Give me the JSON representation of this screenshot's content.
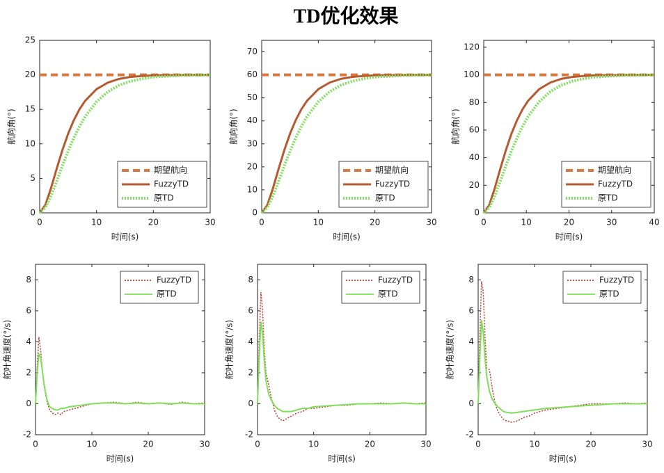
{
  "title": "TD优化效果",
  "chart_data": [
    {
      "type": "line",
      "xlabel": "时间(s)",
      "ylabel": "航向角(°)",
      "xlim": [
        0,
        30
      ],
      "ylim": [
        0,
        25
      ],
      "xticks": [
        0,
        10,
        20,
        30
      ],
      "yticks": [
        0,
        5,
        10,
        15,
        20,
        25
      ],
      "legend": "lower right",
      "x": [
        0,
        1,
        2,
        3,
        4,
        5,
        6,
        7,
        8,
        10,
        12,
        14,
        16,
        18,
        20,
        25,
        30
      ],
      "series": [
        {
          "name": "期望航向",
          "color": "#d9773f",
          "style": "dashed",
          "values": [
            20,
            20,
            20,
            20,
            20,
            20,
            20,
            20,
            20,
            20,
            20,
            20,
            20,
            20,
            20,
            20,
            20
          ]
        },
        {
          "name": "FuzzyTD",
          "color": "#b5592e",
          "style": "solid",
          "values": [
            0,
            1.15,
            3.6,
            6.42,
            9.1,
            11.46,
            13.42,
            15.0,
            16.24,
            17.92,
            18.88,
            19.42,
            19.7,
            19.84,
            19.92,
            19.98,
            20
          ]
        },
        {
          "name": "原TD",
          "color": "#7ee05a",
          "style": "dotted",
          "values": [
            0,
            0.75,
            2.48,
            4.62,
            6.84,
            8.94,
            10.86,
            12.52,
            13.94,
            16.1,
            17.56,
            18.5,
            19.08,
            19.44,
            19.68,
            19.92,
            19.98
          ]
        }
      ]
    },
    {
      "type": "line",
      "xlabel": "时间(s)",
      "ylabel": "航向角(°)",
      "xlim": [
        0,
        30
      ],
      "ylim": [
        0,
        75
      ],
      "xticks": [
        0,
        10,
        20,
        30
      ],
      "yticks": [
        0,
        10,
        20,
        30,
        40,
        50,
        60,
        70
      ],
      "legend": "lower right",
      "x": [
        0,
        1,
        2,
        3,
        4,
        5,
        6,
        7,
        8,
        10,
        12,
        14,
        16,
        18,
        20,
        25,
        30
      ],
      "series": [
        {
          "name": "期望航向",
          "color": "#d9773f",
          "style": "dashed",
          "values": [
            60,
            60,
            60,
            60,
            60,
            60,
            60,
            60,
            60,
            60,
            60,
            60,
            60,
            60,
            60,
            60,
            60
          ]
        },
        {
          "name": "FuzzyTD",
          "color": "#b5592e",
          "style": "solid",
          "values": [
            0,
            3.45,
            10.8,
            19.26,
            27.3,
            34.38,
            40.26,
            45.0,
            48.72,
            53.76,
            56.64,
            58.26,
            59.1,
            59.52,
            59.76,
            59.94,
            60
          ]
        },
        {
          "name": "原TD",
          "color": "#7ee05a",
          "style": "dotted",
          "values": [
            0,
            2.26,
            7.44,
            13.86,
            20.52,
            26.82,
            32.58,
            37.56,
            41.82,
            48.3,
            52.68,
            55.5,
            57.24,
            58.32,
            59.04,
            59.76,
            59.94
          ]
        }
      ]
    },
    {
      "type": "line",
      "xlabel": "时间(s)",
      "ylabel": "航向角(°)",
      "xlim": [
        0,
        40
      ],
      "ylim": [
        0,
        125
      ],
      "xticks": [
        0,
        10,
        20,
        30,
        40
      ],
      "yticks": [
        0,
        20,
        40,
        60,
        80,
        100,
        120
      ],
      "legend": "lower right",
      "x": [
        0,
        1.3,
        2.6,
        3.9,
        5.2,
        6.5,
        7.8,
        9.1,
        10.4,
        13,
        15.6,
        18.2,
        20.8,
        23.4,
        26,
        32.5,
        40
      ],
      "series": [
        {
          "name": "期望航向",
          "color": "#d9773f",
          "style": "dashed",
          "values": [
            100,
            100,
            100,
            100,
            100,
            100,
            100,
            100,
            100,
            100,
            100,
            100,
            100,
            100,
            100,
            100,
            100
          ]
        },
        {
          "name": "FuzzyTD",
          "color": "#b5592e",
          "style": "solid",
          "values": [
            0,
            5.75,
            18,
            32.1,
            45.5,
            57.3,
            67.1,
            75,
            81.2,
            89.6,
            94.4,
            97.1,
            98.5,
            99.2,
            99.6,
            99.9,
            100
          ]
        },
        {
          "name": "原TD",
          "color": "#7ee05a",
          "style": "dotted",
          "values": [
            0,
            3.76,
            12.4,
            23.1,
            34.2,
            44.7,
            54.3,
            62.6,
            69.7,
            80.5,
            87.8,
            92.5,
            95.4,
            97.2,
            98.4,
            99.6,
            100
          ]
        }
      ]
    },
    {
      "type": "line",
      "xlabel": "时间(s)",
      "ylabel": "舵叶角速度(°/s)",
      "xlim": [
        0,
        30
      ],
      "ylim": [
        -2,
        9
      ],
      "xticks": [
        0,
        10,
        20,
        30
      ],
      "yticks": [
        -2,
        0,
        2,
        4,
        6,
        8
      ],
      "legend": "upper right",
      "x": [
        0,
        0.3,
        0.6,
        0.9,
        1.2,
        1.5,
        2,
        2.5,
        3,
        3.5,
        4,
        4.5,
        5,
        6,
        7,
        8,
        9,
        10,
        12,
        14,
        16,
        18,
        20,
        22,
        24,
        26,
        28,
        30
      ],
      "series": [
        {
          "name": "FuzzyTD",
          "color": "#c0392b",
          "style": "dotted",
          "values": [
            0,
            2.5,
            4.3,
            3.5,
            2.2,
            1.2,
            0.2,
            -0.4,
            -0.6,
            -0.7,
            -0.6,
            -0.7,
            -0.5,
            -0.4,
            -0.3,
            -0.2,
            -0.1,
            0,
            0.05,
            0.1,
            0,
            0.1,
            0,
            0.05,
            -0.05,
            0.1,
            0,
            0.05
          ]
        },
        {
          "name": "原TD",
          "color": "#7ee05a",
          "style": "solid",
          "values": [
            0,
            2,
            3.2,
            3.0,
            2.2,
            1.3,
            0.3,
            -0.2,
            -0.3,
            -0.4,
            -0.4,
            -0.3,
            -0.3,
            -0.2,
            -0.15,
            -0.1,
            -0.05,
            0,
            0.05,
            0.05,
            0,
            0.05,
            0,
            0.05,
            0,
            0.05,
            0,
            0
          ]
        }
      ]
    },
    {
      "type": "line",
      "xlabel": "时间(s)",
      "ylabel": "舵叶角速度(°/s)",
      "xlim": [
        0,
        30
      ],
      "ylim": [
        -2,
        9
      ],
      "xticks": [
        0,
        10,
        20,
        30
      ],
      "yticks": [
        -2,
        0,
        2,
        4,
        6,
        8
      ],
      "legend": "upper right",
      "x": [
        0,
        0.3,
        0.6,
        0.9,
        1.2,
        1.5,
        2,
        2.5,
        3,
        3.5,
        4,
        4.5,
        5,
        6,
        7,
        8,
        9,
        10,
        12,
        14,
        16,
        18,
        20,
        22,
        24,
        26,
        28,
        30
      ],
      "series": [
        {
          "name": "FuzzyTD",
          "color": "#c0392b",
          "style": "dotted",
          "values": [
            0,
            4,
            7.2,
            6,
            3.5,
            2,
            1.2,
            0.3,
            -0.4,
            -0.8,
            -1.0,
            -1.1,
            -1.0,
            -0.8,
            -0.6,
            -0.5,
            -0.3,
            -0.3,
            -0.2,
            -0.1,
            -0.1,
            0,
            0,
            0.05,
            0,
            0.05,
            0,
            0.05
          ]
        },
        {
          "name": "原TD",
          "color": "#7ee05a",
          "style": "solid",
          "values": [
            0,
            3,
            5.3,
            4.5,
            2.8,
            1.5,
            0.6,
            0.2,
            -0.1,
            -0.3,
            -0.4,
            -0.5,
            -0.5,
            -0.5,
            -0.4,
            -0.3,
            -0.3,
            -0.2,
            -0.15,
            -0.1,
            -0.05,
            0,
            0,
            0,
            0,
            0.05,
            0,
            0
          ]
        }
      ]
    },
    {
      "type": "line",
      "xlabel": "时间(s)",
      "ylabel": "舵叶角速度(°/s)",
      "xlim": [
        0,
        30
      ],
      "ylim": [
        -2,
        9
      ],
      "xticks": [
        0,
        10,
        20,
        30
      ],
      "yticks": [
        -2,
        0,
        2,
        4,
        6,
        8
      ],
      "legend": "upper right",
      "x": [
        0,
        0.3,
        0.6,
        0.9,
        1.2,
        1.5,
        2,
        2.5,
        3,
        3.5,
        4,
        4.5,
        5,
        6,
        7,
        8,
        9,
        10,
        12,
        14,
        16,
        18,
        20,
        22,
        24,
        26,
        28,
        30
      ],
      "series": [
        {
          "name": "FuzzyTD",
          "color": "#c0392b",
          "style": "dotted",
          "values": [
            0,
            4.5,
            7.9,
            7.2,
            4.5,
            2.3,
            2.2,
            1,
            0,
            -0.5,
            -0.8,
            -1.0,
            -1.1,
            -1.2,
            -1.1,
            -0.9,
            -0.8,
            -0.6,
            -0.4,
            -0.3,
            -0.2,
            -0.1,
            0,
            0,
            0,
            0.05,
            0,
            0.05
          ]
        },
        {
          "name": "原TD",
          "color": "#7ee05a",
          "style": "solid",
          "values": [
            0,
            3,
            5.4,
            4.6,
            3,
            1.8,
            0.8,
            0.3,
            0,
            -0.2,
            -0.35,
            -0.5,
            -0.55,
            -0.6,
            -0.55,
            -0.5,
            -0.45,
            -0.4,
            -0.3,
            -0.25,
            -0.2,
            -0.15,
            -0.1,
            -0.05,
            0,
            0,
            0,
            0
          ]
        }
      ]
    }
  ]
}
